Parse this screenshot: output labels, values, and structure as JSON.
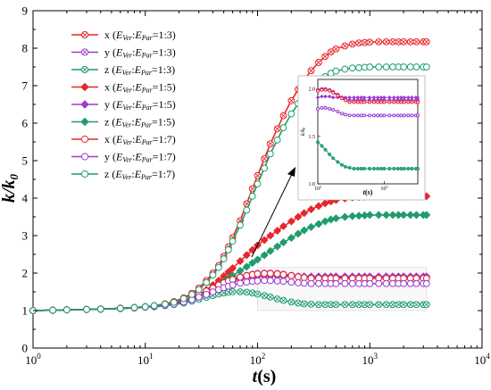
{
  "chart_data": {
    "type": "line",
    "xlabel": "t(s)",
    "ylabel": "k/k0",
    "xscale": "log",
    "xlim": [
      1,
      10000
    ],
    "ylim": [
      0,
      9
    ],
    "x_ticks": [
      {
        "value": 1,
        "exp": "0"
      },
      {
        "value": 10,
        "exp": "1"
      },
      {
        "value": 100,
        "exp": "2"
      },
      {
        "value": 1000,
        "exp": "3"
      },
      {
        "value": 10000,
        "exp": "4"
      }
    ],
    "y_ticks": [
      "0",
      "1",
      "2",
      "3",
      "4",
      "5",
      "6",
      "7",
      "8",
      "9"
    ],
    "legend_position": "top-left",
    "grid": false,
    "x": [
      1,
      1.5,
      2,
      3,
      4,
      6,
      8,
      10,
      12,
      15,
      18,
      22,
      26,
      30,
      35,
      40,
      45,
      50,
      55,
      60,
      70,
      80,
      90,
      100,
      115,
      130,
      150,
      170,
      200,
      230,
      260,
      300,
      350,
      400,
      450,
      500,
      600,
      700,
      800,
      900,
      1000,
      1200,
      1400,
      1600,
      1800,
      2000,
      2300,
      2600,
      3000,
      3200
    ],
    "series": [
      {
        "name": "x (EVer:EPar=1:3)",
        "label": {
          "axis": "x",
          "ver": "Ver",
          "par": "Par",
          "ratio": "=1:3"
        },
        "color": "#e8262b",
        "marker": "crossed-circle",
        "values": [
          1.0,
          1.01,
          1.02,
          1.03,
          1.04,
          1.06,
          1.08,
          1.1,
          1.13,
          1.18,
          1.24,
          1.34,
          1.46,
          1.6,
          1.8,
          2.0,
          2.2,
          2.45,
          2.7,
          2.95,
          3.4,
          3.85,
          4.25,
          4.6,
          5.05,
          5.45,
          5.85,
          6.2,
          6.6,
          6.9,
          7.15,
          7.4,
          7.62,
          7.78,
          7.9,
          7.98,
          8.06,
          8.11,
          8.14,
          8.15,
          8.16,
          8.17,
          8.17,
          8.17,
          8.17,
          8.17,
          8.17,
          8.17,
          8.17,
          8.17
        ]
      },
      {
        "name": "y (EVer:EPar=1:3)",
        "label": {
          "axis": "y",
          "ver": "Ver",
          "par": "Par",
          "ratio": "=1:3"
        },
        "color": "#9b3bd1",
        "marker": "crossed-circle",
        "values": [
          1.0,
          1.01,
          1.02,
          1.03,
          1.04,
          1.06,
          1.08,
          1.1,
          1.12,
          1.16,
          1.2,
          1.27,
          1.35,
          1.43,
          1.52,
          1.61,
          1.69,
          1.75,
          1.8,
          1.84,
          1.9,
          1.94,
          1.97,
          1.99,
          2.0,
          2.0,
          1.99,
          1.97,
          1.94,
          1.91,
          1.89,
          1.88,
          1.88,
          1.88,
          1.88,
          1.88,
          1.88,
          1.88,
          1.88,
          1.88,
          1.88,
          1.88,
          1.88,
          1.88,
          1.88,
          1.88,
          1.88,
          1.88,
          1.88,
          1.88
        ]
      },
      {
        "name": "z (EVer:EPar=1:3)",
        "label": {
          "axis": "z",
          "ver": "Ver",
          "par": "Par",
          "ratio": "=1:3"
        },
        "color": "#1f9c6b",
        "marker": "crossed-circle",
        "values": [
          1.0,
          1.01,
          1.02,
          1.03,
          1.04,
          1.05,
          1.07,
          1.09,
          1.1,
          1.13,
          1.16,
          1.2,
          1.25,
          1.3,
          1.35,
          1.4,
          1.44,
          1.47,
          1.49,
          1.5,
          1.5,
          1.49,
          1.47,
          1.44,
          1.4,
          1.36,
          1.31,
          1.27,
          1.23,
          1.2,
          1.18,
          1.17,
          1.16,
          1.16,
          1.16,
          1.16,
          1.16,
          1.16,
          1.16,
          1.16,
          1.16,
          1.16,
          1.16,
          1.16,
          1.16,
          1.16,
          1.16,
          1.16,
          1.16,
          1.16
        ]
      },
      {
        "name": "x (EVer:EPar=1:5)",
        "label": {
          "axis": "x",
          "ver": "Ver",
          "par": "Par",
          "ratio": "=1:5"
        },
        "color": "#e8262b",
        "marker": "diamond",
        "values": [
          1.0,
          1.01,
          1.02,
          1.03,
          1.04,
          1.06,
          1.08,
          1.1,
          1.12,
          1.16,
          1.2,
          1.27,
          1.35,
          1.43,
          1.55,
          1.68,
          1.8,
          1.92,
          2.03,
          2.13,
          2.32,
          2.48,
          2.62,
          2.74,
          2.88,
          3.0,
          3.13,
          3.25,
          3.38,
          3.5,
          3.6,
          3.7,
          3.79,
          3.86,
          3.91,
          3.95,
          3.99,
          4.02,
          4.03,
          4.04,
          4.05,
          4.05,
          4.05,
          4.05,
          4.05,
          4.05,
          4.05,
          4.05,
          4.05,
          4.05
        ]
      },
      {
        "name": "y (EVer:EPar=1:5)",
        "label": {
          "axis": "y",
          "ver": "Ver",
          "par": "Par",
          "ratio": "=1:5"
        },
        "color": "#9b3bd1",
        "marker": "diamond",
        "values": [
          1.0,
          1.01,
          1.02,
          1.03,
          1.04,
          1.06,
          1.08,
          1.1,
          1.12,
          1.15,
          1.19,
          1.25,
          1.32,
          1.4,
          1.48,
          1.56,
          1.63,
          1.69,
          1.74,
          1.78,
          1.84,
          1.88,
          1.9,
          1.91,
          1.92,
          1.92,
          1.92,
          1.91,
          1.91,
          1.91,
          1.91,
          1.91,
          1.91,
          1.91,
          1.91,
          1.91,
          1.91,
          1.91,
          1.91,
          1.91,
          1.91,
          1.91,
          1.91,
          1.91,
          1.91,
          1.91,
          1.91,
          1.91,
          1.91,
          1.91
        ]
      },
      {
        "name": "z (EVer:EPar=1:5)",
        "label": {
          "axis": "z",
          "ver": "Ver",
          "par": "Par",
          "ratio": "=1:5"
        },
        "color": "#1f9c6b",
        "marker": "diamond",
        "values": [
          1.0,
          1.01,
          1.02,
          1.03,
          1.04,
          1.06,
          1.08,
          1.1,
          1.12,
          1.15,
          1.19,
          1.25,
          1.32,
          1.39,
          1.49,
          1.59,
          1.69,
          1.78,
          1.86,
          1.93,
          2.06,
          2.17,
          2.27,
          2.36,
          2.48,
          2.59,
          2.71,
          2.82,
          2.94,
          3.05,
          3.14,
          3.23,
          3.31,
          3.38,
          3.43,
          3.46,
          3.5,
          3.52,
          3.53,
          3.54,
          3.55,
          3.55,
          3.55,
          3.55,
          3.55,
          3.55,
          3.55,
          3.55,
          3.55,
          3.55
        ]
      },
      {
        "name": "x (EVer:EPar=1:7)",
        "label": {
          "axis": "x",
          "ver": "Ver",
          "par": "Par",
          "ratio": "=1:7"
        },
        "color": "#e8262b",
        "marker": "circle",
        "values": [
          1.0,
          1.01,
          1.02,
          1.03,
          1.04,
          1.06,
          1.08,
          1.1,
          1.12,
          1.16,
          1.2,
          1.27,
          1.35,
          1.43,
          1.52,
          1.6,
          1.68,
          1.74,
          1.79,
          1.83,
          1.89,
          1.93,
          1.96,
          1.98,
          1.99,
          1.99,
          1.98,
          1.96,
          1.93,
          1.9,
          1.88,
          1.86,
          1.86,
          1.86,
          1.86,
          1.86,
          1.86,
          1.86,
          1.86,
          1.86,
          1.86,
          1.86,
          1.86,
          1.86,
          1.86,
          1.86,
          1.86,
          1.86,
          1.86,
          1.86
        ]
      },
      {
        "name": "y (EVer:EPar=1:7)",
        "label": {
          "axis": "y",
          "ver": "Ver",
          "par": "Par",
          "ratio": "=1:7"
        },
        "color": "#9b3bd1",
        "marker": "circle",
        "values": [
          1.0,
          1.01,
          1.02,
          1.03,
          1.04,
          1.06,
          1.07,
          1.09,
          1.11,
          1.14,
          1.17,
          1.23,
          1.29,
          1.36,
          1.43,
          1.5,
          1.56,
          1.61,
          1.65,
          1.68,
          1.73,
          1.76,
          1.78,
          1.79,
          1.8,
          1.8,
          1.79,
          1.78,
          1.76,
          1.74,
          1.73,
          1.72,
          1.72,
          1.72,
          1.72,
          1.72,
          1.72,
          1.72,
          1.72,
          1.72,
          1.72,
          1.72,
          1.72,
          1.72,
          1.72,
          1.72,
          1.72,
          1.72,
          1.72,
          1.72
        ]
      },
      {
        "name": "z (EVer:EPar=1:7)",
        "label": {
          "axis": "z",
          "ver": "Ver",
          "par": "Par",
          "ratio": "=1:7"
        },
        "color": "#1f9c6b",
        "marker": "circle",
        "values": [
          1.0,
          1.01,
          1.02,
          1.03,
          1.04,
          1.06,
          1.08,
          1.1,
          1.13,
          1.17,
          1.22,
          1.32,
          1.43,
          1.56,
          1.75,
          1.95,
          2.15,
          2.38,
          2.62,
          2.85,
          3.28,
          3.68,
          4.05,
          4.38,
          4.8,
          5.18,
          5.55,
          5.88,
          6.25,
          6.52,
          6.75,
          6.95,
          7.12,
          7.24,
          7.33,
          7.39,
          7.44,
          7.47,
          7.48,
          7.49,
          7.5,
          7.5,
          7.5,
          7.5,
          7.5,
          7.5,
          7.5,
          7.5,
          7.5,
          7.5
        ]
      }
    ],
    "inset": {
      "description": "zoom of lower curves",
      "xlim": [
        100,
        3200
      ],
      "ylim": [
        1.0,
        2.1
      ],
      "x_ticks": [
        {
          "value": 100,
          "exp": "2"
        },
        {
          "value": 1000,
          "exp": "3"
        }
      ],
      "y_ticks": [
        "1.0",
        "1.5",
        "2.0"
      ],
      "xlabel": "t(s)",
      "ylabel": "k/k0"
    }
  }
}
